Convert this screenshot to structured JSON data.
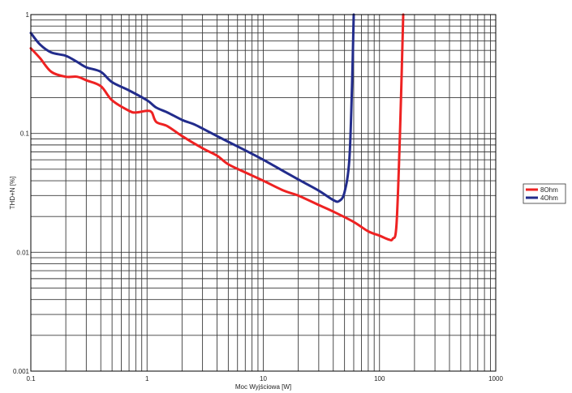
{
  "chart_data": {
    "type": "line",
    "xlabel": "Moc Wyjściowa [W]",
    "ylabel": "THD+N [%]",
    "xscale": "log",
    "yscale": "log",
    "xlim": [
      0.1,
      1000
    ],
    "ylim": [
      0.001,
      1
    ],
    "grid": true,
    "legend_position": "right",
    "x_tick_labels": [
      "0.1",
      "1",
      "10",
      "100",
      "1000"
    ],
    "y_tick_labels": [
      "0.001",
      "0.01",
      "0.1",
      "1"
    ],
    "series": [
      {
        "name": "8Ohm",
        "color": "#ee2222",
        "x": [
          0.1,
          0.12,
          0.15,
          0.2,
          0.25,
          0.3,
          0.4,
          0.5,
          0.7,
          0.8,
          1.0,
          1.1,
          1.2,
          1.5,
          2.0,
          3.0,
          4.0,
          5.0,
          7.0,
          10,
          15,
          20,
          30,
          40,
          60,
          80,
          100,
          120,
          130,
          140,
          150,
          160
        ],
        "y": [
          0.52,
          0.43,
          0.33,
          0.3,
          0.3,
          0.28,
          0.25,
          0.19,
          0.155,
          0.15,
          0.155,
          0.15,
          0.125,
          0.115,
          0.095,
          0.075,
          0.065,
          0.055,
          0.047,
          0.04,
          0.033,
          0.03,
          0.025,
          0.022,
          0.018,
          0.015,
          0.0138,
          0.0128,
          0.013,
          0.017,
          0.1,
          1.0
        ]
      },
      {
        "name": "4Ohm",
        "color": "#222c8c",
        "x": [
          0.1,
          0.12,
          0.15,
          0.2,
          0.25,
          0.3,
          0.4,
          0.5,
          0.7,
          1.0,
          1.2,
          1.5,
          2.0,
          2.5,
          3.0,
          4.0,
          5.0,
          7.0,
          10,
          15,
          20,
          30,
          40,
          45,
          50,
          55,
          58,
          60
        ],
        "y": [
          0.7,
          0.56,
          0.48,
          0.45,
          0.4,
          0.36,
          0.33,
          0.27,
          0.23,
          0.19,
          0.165,
          0.15,
          0.13,
          0.12,
          0.11,
          0.095,
          0.085,
          0.072,
          0.06,
          0.048,
          0.041,
          0.033,
          0.0275,
          0.027,
          0.032,
          0.06,
          0.25,
          1.0
        ]
      }
    ]
  }
}
